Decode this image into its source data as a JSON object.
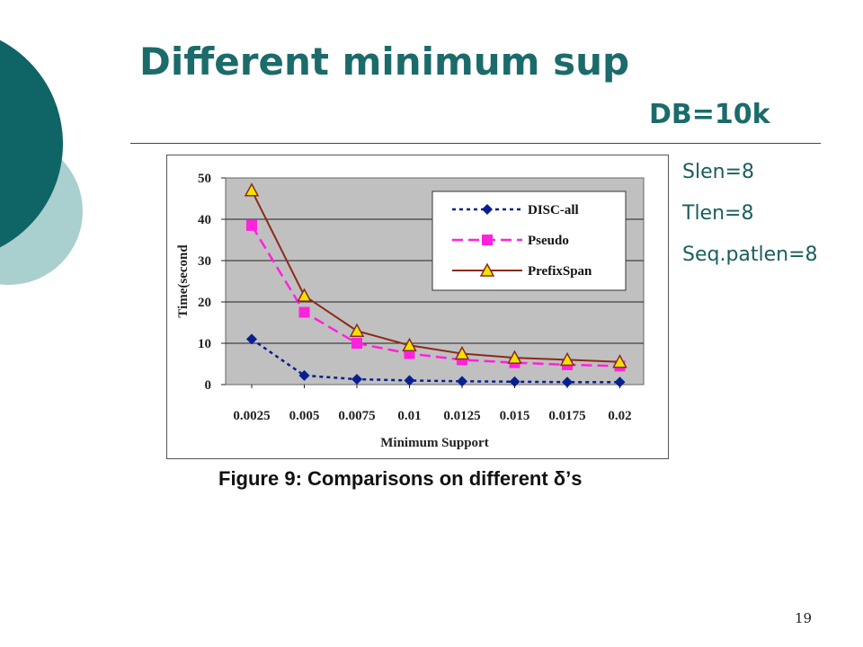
{
  "slide": {
    "title": "Different minimum sup",
    "subtitle": "DB=10k",
    "params": [
      "Slen=8",
      "Tlen=8",
      "Seq.patlen=8"
    ],
    "figure_caption": "Figure 9: Comparisons on different δ’s",
    "page_number": "19"
  },
  "colors": {
    "title": "#1b6b6b",
    "deco_dark": "#0f6565",
    "deco_light": "#a9cfcf",
    "plot_bg": "#c0c0c0",
    "disc_all": "#0a1f8f",
    "pseudo": "#ff22dd",
    "prefixspan": "#8b2a1e",
    "triangle_fill": "#f2e200"
  },
  "chart_data": {
    "type": "line",
    "xlabel": "Minimum Support",
    "ylabel": "Time(second",
    "categories": [
      "0.0025",
      "0.005",
      "0.0075",
      "0.01",
      "0.0125",
      "0.015",
      "0.0175",
      "0.02"
    ],
    "ylim": [
      0,
      50
    ],
    "yticks": [
      "0",
      "10",
      "20",
      "30",
      "40",
      "50"
    ],
    "grid": true,
    "legend": "top-right",
    "series": [
      {
        "name": "DISC-all",
        "marker": "diamond",
        "values": [
          11,
          2.2,
          1.3,
          1.0,
          0.8,
          0.7,
          0.6,
          0.6
        ]
      },
      {
        "name": "Pseudo",
        "marker": "square",
        "values": [
          38.5,
          17.5,
          10,
          7.5,
          6,
          5.3,
          4.8,
          4.5
        ]
      },
      {
        "name": "PrefixSpan",
        "marker": "triangle",
        "values": [
          47,
          21.5,
          13,
          9.5,
          7.5,
          6.5,
          6,
          5.5
        ]
      }
    ]
  }
}
